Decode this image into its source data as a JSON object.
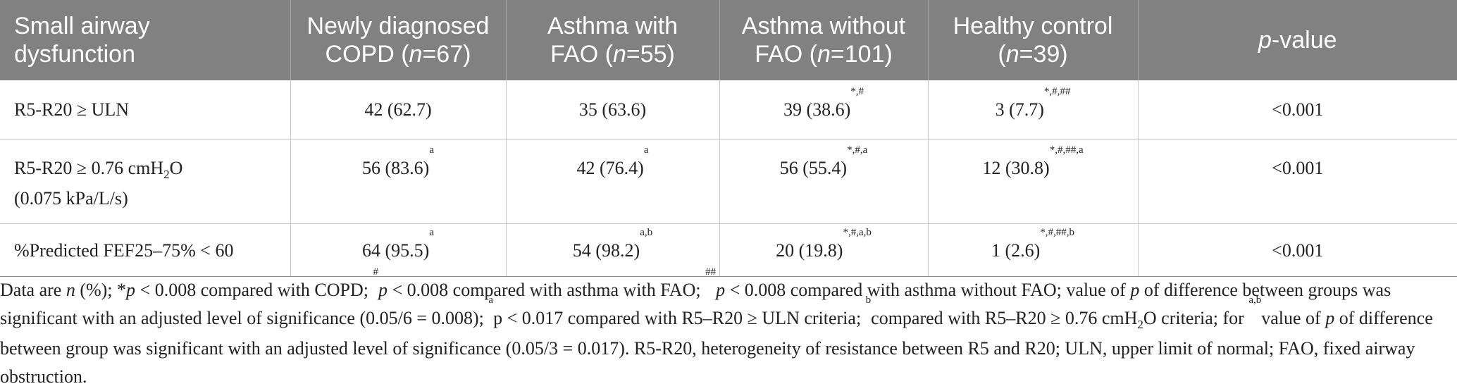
{
  "table": {
    "headers": {
      "col1_line1": "Small airway",
      "col1_line2": "dysfunction",
      "col2_line1": "Newly diagnosed",
      "col2_pre": "COPD (",
      "col2_n": "n",
      "col2_post": "=67)",
      "col3_line1": "Asthma with",
      "col3_pre": "FAO (",
      "col3_n": "n",
      "col3_post": "=55)",
      "col4_line1": "Asthma without",
      "col4_pre": "FAO (",
      "col4_n": "n",
      "col4_post": "=101)",
      "col5_line1": "Healthy control",
      "col5_pre": "(",
      "col5_n": "n",
      "col5_post": "=39)",
      "col6_p": "p",
      "col6_rest": "-value"
    },
    "rows": [
      {
        "label": "R5-R20 ≥ ULN",
        "copd": "42 (62.7)",
        "copd_sup": "",
        "fao": "35 (63.6)",
        "fao_sup": "",
        "nofao": "39 (38.6)",
        "nofao_sup": "*,#",
        "healthy": "3 (7.7)",
        "healthy_sup": "*,#,##",
        "p": "<0.001"
      },
      {
        "label_pre": "R5-R20 ≥ 0.76 cmH",
        "label_sub": "2",
        "label_post": "O",
        "label_line2": "(0.075 kPa/L/s)",
        "copd": "56 (83.6)",
        "copd_sup": "a",
        "fao": "42 (76.4)",
        "fao_sup": "a",
        "nofao": "56 (55.4)",
        "nofao_sup": "*,#,a",
        "healthy": "12 (30.8)",
        "healthy_sup": "*,#,##,a",
        "p": "<0.001"
      },
      {
        "label": "%Predicted FEF25–75% < 60",
        "copd": "64 (95.5)",
        "copd_sup": "a",
        "fao": "54 (98.2)",
        "fao_sup": "a,b",
        "nofao": "20 (19.8)",
        "nofao_sup": "*,#,a,b",
        "healthy": "1 (2.6)",
        "healthy_sup": "*,#,##,b",
        "p": "<0.001"
      }
    ]
  },
  "note": {
    "t1": "Data are ",
    "t2": "n",
    "t3": " (%); *",
    "t4": "p",
    "t5": " < 0.008 compared with COPD; ",
    "s1": "#",
    "t6": "p",
    "t7": " < 0.008 compared with asthma with FAO; ",
    "s2": "##",
    "t8": "p",
    "t9": " < 0.008 compared with asthma without FAO; value of ",
    "t10": "p",
    "t11": " of difference between groups was significant with an adjusted level of significance (0.05/6 = 0.008); ",
    "s3": "a",
    "t12": "p < 0.017 compared with R5–R20 ≥ ULN criteria; ",
    "s4": "b",
    "t13": "compared with R5–R20 ≥ 0.76 cmH",
    "sub1": "2",
    "t14": "O criteria; for ",
    "s5": "a,b",
    "t15": "value of ",
    "t16": "p",
    "t17": " of difference between group was significant with an adjusted level of significance (0.05/3 = 0.017). R5-R20, heterogeneity of resistance between R5 and R20; ULN, upper limit of normal; FAO, fixed airway obstruction."
  }
}
